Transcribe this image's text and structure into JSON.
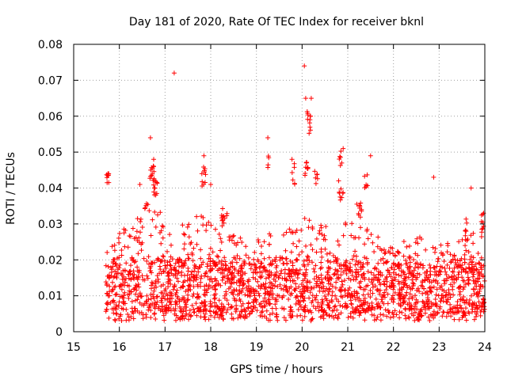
{
  "chart_data": {
    "type": "scatter",
    "title": "Day 181 of 2020, Rate Of TEC Index for receiver bknl",
    "xlabel": "GPS time / hours",
    "ylabel": "ROTI / TECUs",
    "xlim": [
      15,
      24
    ],
    "ylim": [
      0,
      0.08
    ],
    "xticks": [
      15,
      16,
      17,
      18,
      19,
      20,
      21,
      22,
      23,
      24
    ],
    "yticks": [
      0,
      0.01,
      0.02,
      0.03,
      0.04,
      0.05,
      0.06,
      0.07,
      0.08
    ],
    "xtick_labels": [
      "15",
      "16",
      "17",
      "18",
      "19",
      "20",
      "21",
      "22",
      "23",
      "24"
    ],
    "ytick_labels": [
      "0",
      "0.01",
      "0.02",
      "0.03",
      "0.04",
      "0.05",
      "0.06",
      "0.07",
      "0.08"
    ],
    "grid": true,
    "marker": "+",
    "marker_color": "#ff0000",
    "data_x_range": [
      15.7,
      24.0
    ],
    "baseline_band": [
      0.005,
      0.02
    ],
    "notable_points": [
      {
        "x": 15.75,
        "y": 0.044
      },
      {
        "x": 16.68,
        "y": 0.054
      },
      {
        "x": 17.2,
        "y": 0.072
      },
      {
        "x": 17.85,
        "y": 0.049
      },
      {
        "x": 19.25,
        "y": 0.054
      },
      {
        "x": 19.78,
        "y": 0.048
      },
      {
        "x": 20.05,
        "y": 0.074
      },
      {
        "x": 20.08,
        "y": 0.065
      },
      {
        "x": 20.2,
        "y": 0.065
      },
      {
        "x": 20.18,
        "y": 0.06
      },
      {
        "x": 20.9,
        "y": 0.051
      },
      {
        "x": 21.5,
        "y": 0.049
      },
      {
        "x": 22.88,
        "y": 0.043
      },
      {
        "x": 23.7,
        "y": 0.04
      },
      {
        "x": 16.45,
        "y": 0.041
      },
      {
        "x": 18.0,
        "y": 0.041
      },
      {
        "x": 20.8,
        "y": 0.042
      }
    ],
    "clusters": [
      {
        "x": 15.75,
        "y": 0.043,
        "n": 8,
        "dx": 0.03,
        "dy": 0.0015
      },
      {
        "x": 16.72,
        "y": 0.045,
        "n": 14,
        "dx": 0.05,
        "dy": 0.003
      },
      {
        "x": 16.8,
        "y": 0.04,
        "n": 10,
        "dx": 0.05,
        "dy": 0.002
      },
      {
        "x": 17.85,
        "y": 0.044,
        "n": 10,
        "dx": 0.05,
        "dy": 0.004
      },
      {
        "x": 18.3,
        "y": 0.032,
        "n": 12,
        "dx": 0.06,
        "dy": 0.003
      },
      {
        "x": 19.25,
        "y": 0.047,
        "n": 4,
        "dx": 0.02,
        "dy": 0.002
      },
      {
        "x": 19.8,
        "y": 0.044,
        "n": 6,
        "dx": 0.04,
        "dy": 0.003
      },
      {
        "x": 20.15,
        "y": 0.058,
        "n": 10,
        "dx": 0.04,
        "dy": 0.004
      },
      {
        "x": 20.1,
        "y": 0.045,
        "n": 10,
        "dx": 0.05,
        "dy": 0.003
      },
      {
        "x": 20.3,
        "y": 0.043,
        "n": 6,
        "dx": 0.04,
        "dy": 0.002
      },
      {
        "x": 20.85,
        "y": 0.048,
        "n": 6,
        "dx": 0.04,
        "dy": 0.003
      },
      {
        "x": 20.85,
        "y": 0.038,
        "n": 8,
        "dx": 0.05,
        "dy": 0.002
      },
      {
        "x": 21.4,
        "y": 0.043,
        "n": 6,
        "dx": 0.04,
        "dy": 0.003
      },
      {
        "x": 21.25,
        "y": 0.033,
        "n": 10,
        "dx": 0.06,
        "dy": 0.003
      },
      {
        "x": 23.6,
        "y": 0.028,
        "n": 8,
        "dx": 0.05,
        "dy": 0.004
      },
      {
        "x": 23.95,
        "y": 0.03,
        "n": 8,
        "dx": 0.03,
        "dy": 0.004
      }
    ],
    "envelope": [
      {
        "x": 15.7,
        "y": 0.024
      },
      {
        "x": 16.0,
        "y": 0.028
      },
      {
        "x": 16.3,
        "y": 0.03
      },
      {
        "x": 16.6,
        "y": 0.036
      },
      {
        "x": 16.9,
        "y": 0.034
      },
      {
        "x": 17.2,
        "y": 0.03
      },
      {
        "x": 17.5,
        "y": 0.032
      },
      {
        "x": 17.8,
        "y": 0.034
      },
      {
        "x": 18.1,
        "y": 0.032
      },
      {
        "x": 18.4,
        "y": 0.03
      },
      {
        "x": 18.7,
        "y": 0.026
      },
      {
        "x": 19.0,
        "y": 0.026
      },
      {
        "x": 19.3,
        "y": 0.028
      },
      {
        "x": 19.6,
        "y": 0.029
      },
      {
        "x": 19.9,
        "y": 0.03
      },
      {
        "x": 20.2,
        "y": 0.034
      },
      {
        "x": 20.5,
        "y": 0.03
      },
      {
        "x": 20.8,
        "y": 0.03
      },
      {
        "x": 21.1,
        "y": 0.031
      },
      {
        "x": 21.4,
        "y": 0.03
      },
      {
        "x": 21.7,
        "y": 0.026
      },
      {
        "x": 22.0,
        "y": 0.024
      },
      {
        "x": 22.3,
        "y": 0.026
      },
      {
        "x": 22.6,
        "y": 0.027
      },
      {
        "x": 22.9,
        "y": 0.024
      },
      {
        "x": 23.2,
        "y": 0.025
      },
      {
        "x": 23.5,
        "y": 0.026
      },
      {
        "x": 23.8,
        "y": 0.028
      },
      {
        "x": 24.0,
        "y": 0.03
      }
    ],
    "bulk_point_count": 2200,
    "random_seed": 181
  }
}
